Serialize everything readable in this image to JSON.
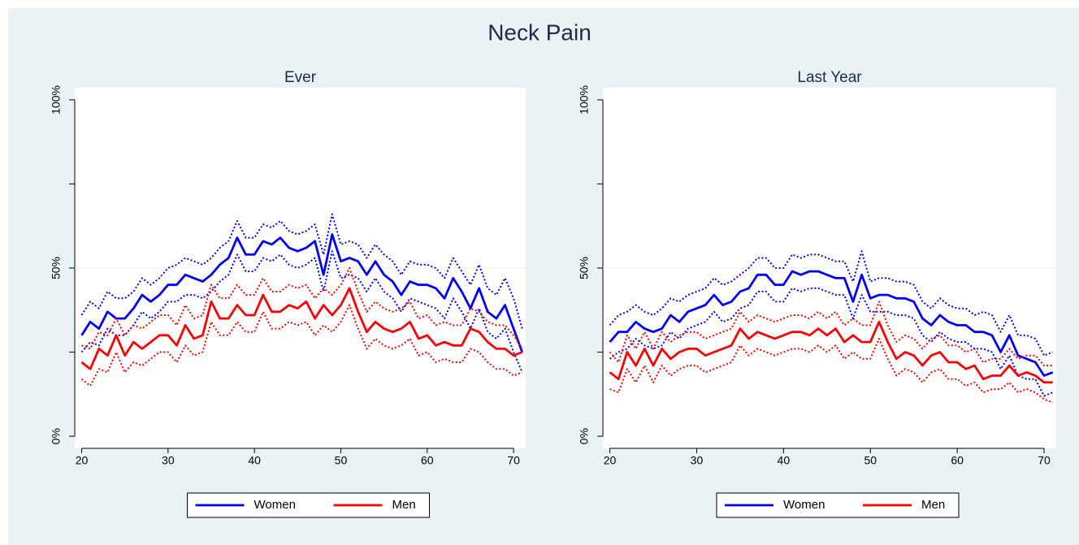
{
  "title": "Neck Pain",
  "chart_data": [
    {
      "type": "line",
      "title": "Ever",
      "x": [
        20,
        21,
        22,
        23,
        24,
        25,
        26,
        27,
        28,
        29,
        30,
        31,
        32,
        33,
        34,
        35,
        36,
        37,
        38,
        39,
        40,
        41,
        42,
        43,
        44,
        45,
        46,
        47,
        48,
        49,
        50,
        51,
        52,
        53,
        54,
        55,
        56,
        57,
        58,
        59,
        60,
        61,
        62,
        63,
        64,
        65,
        66,
        67,
        68,
        69,
        70,
        71
      ],
      "series": [
        {
          "name": "Women",
          "color": "#0000ff",
          "values": [
            30,
            34,
            32,
            37,
            35,
            35,
            38,
            42,
            40,
            42,
            45,
            45,
            48,
            47,
            46,
            48,
            51,
            53,
            59,
            54,
            54,
            58,
            57,
            59,
            56,
            55,
            56,
            58,
            48,
            60,
            52,
            53,
            52,
            48,
            52,
            48,
            46,
            42,
            46,
            45,
            45,
            44,
            41,
            47,
            43,
            38,
            44,
            37,
            35,
            39,
            32,
            25
          ],
          "upper": [
            36,
            40,
            38,
            43,
            41,
            41,
            43,
            47,
            45,
            47,
            50,
            51,
            53,
            52,
            51,
            53,
            56,
            58,
            64,
            59,
            59,
            63,
            62,
            64,
            61,
            60,
            61,
            63,
            54,
            66,
            57,
            58,
            57,
            53,
            57,
            54,
            52,
            48,
            52,
            51,
            51,
            50,
            47,
            53,
            49,
            45,
            51,
            44,
            42,
            47,
            41,
            32
          ],
          "lower": [
            25,
            28,
            27,
            32,
            30,
            30,
            33,
            37,
            35,
            37,
            40,
            40,
            42,
            42,
            41,
            43,
            46,
            48,
            54,
            49,
            49,
            53,
            52,
            54,
            51,
            50,
            51,
            53,
            43,
            55,
            47,
            48,
            47,
            43,
            47,
            43,
            41,
            37,
            41,
            40,
            39,
            38,
            35,
            41,
            37,
            32,
            38,
            31,
            29,
            32,
            25,
            19
          ]
        },
        {
          "name": "Men",
          "color": "#ff0000",
          "values": [
            22,
            20,
            26,
            24,
            30,
            24,
            28,
            26,
            28,
            30,
            30,
            27,
            33,
            29,
            30,
            40,
            35,
            35,
            39,
            36,
            36,
            42,
            37,
            37,
            39,
            38,
            40,
            35,
            39,
            36,
            39,
            44,
            37,
            31,
            34,
            32,
            31,
            32,
            34,
            29,
            30,
            27,
            28,
            27,
            27,
            32,
            31,
            28,
            26,
            26,
            24,
            25
          ],
          "upper": [
            27,
            26,
            31,
            30,
            35,
            30,
            33,
            32,
            34,
            36,
            36,
            33,
            39,
            35,
            36,
            45,
            41,
            41,
            45,
            42,
            42,
            47,
            43,
            43,
            45,
            44,
            45,
            41,
            44,
            42,
            45,
            50,
            43,
            37,
            40,
            38,
            37,
            38,
            40,
            35,
            36,
            33,
            34,
            33,
            33,
            38,
            37,
            34,
            33,
            33,
            30,
            26
          ],
          "lower": [
            17,
            15,
            20,
            19,
            25,
            19,
            22,
            21,
            23,
            25,
            25,
            22,
            27,
            24,
            25,
            34,
            30,
            30,
            34,
            31,
            31,
            37,
            32,
            32,
            34,
            33,
            34,
            30,
            33,
            31,
            34,
            39,
            32,
            26,
            29,
            27,
            26,
            27,
            29,
            24,
            25,
            22,
            23,
            22,
            22,
            26,
            25,
            22,
            20,
            20,
            18,
            19
          ]
        }
      ],
      "xlim": [
        19.2,
        71.4
      ],
      "ylim": [
        -3.6,
        103.6
      ],
      "xticks": [
        20,
        30,
        40,
        50,
        60,
        70
      ],
      "yticks": [
        {
          "value": 0,
          "label": "0%"
        },
        {
          "value": 50,
          "label": "50%"
        },
        {
          "value": 100,
          "label": "100%"
        }
      ],
      "yminorticks": [
        25,
        75
      ],
      "grid": true,
      "legend": "bottom"
    },
    {
      "type": "line",
      "title": "Last Year",
      "x": [
        20,
        21,
        22,
        23,
        24,
        25,
        26,
        27,
        28,
        29,
        30,
        31,
        32,
        33,
        34,
        35,
        36,
        37,
        38,
        39,
        40,
        41,
        42,
        43,
        44,
        45,
        46,
        47,
        48,
        49,
        50,
        51,
        52,
        53,
        54,
        55,
        56,
        57,
        58,
        59,
        60,
        61,
        62,
        63,
        64,
        65,
        66,
        67,
        68,
        69,
        70,
        71
      ],
      "series": [
        {
          "name": "Women",
          "color": "#0000ff",
          "values": [
            28,
            31,
            31,
            34,
            32,
            31,
            32,
            36,
            34,
            37,
            38,
            39,
            42,
            39,
            40,
            43,
            44,
            48,
            48,
            45,
            45,
            49,
            48,
            49,
            49,
            48,
            47,
            47,
            40,
            48,
            41,
            42,
            42,
            41,
            41,
            40,
            35,
            33,
            36,
            34,
            33,
            33,
            31,
            31,
            30,
            25,
            30,
            24,
            23,
            22,
            18,
            19
          ],
          "upper": [
            33,
            36,
            37,
            39,
            37,
            36,
            38,
            41,
            40,
            42,
            43,
            44,
            47,
            45,
            46,
            48,
            50,
            53,
            53,
            50,
            50,
            54,
            53,
            54,
            54,
            53,
            52,
            52,
            46,
            55,
            46,
            47,
            47,
            46,
            46,
            45,
            40,
            38,
            41,
            39,
            38,
            38,
            36,
            37,
            36,
            31,
            36,
            30,
            30,
            29,
            24,
            25
          ],
          "lower": [
            23,
            25,
            26,
            29,
            27,
            26,
            27,
            31,
            29,
            32,
            33,
            34,
            37,
            34,
            35,
            38,
            39,
            43,
            43,
            40,
            40,
            44,
            43,
            44,
            44,
            43,
            42,
            42,
            35,
            42,
            37,
            37,
            37,
            36,
            36,
            35,
            30,
            28,
            31,
            29,
            28,
            28,
            26,
            26,
            25,
            20,
            24,
            18,
            17,
            17,
            12,
            13
          ]
        },
        {
          "name": "Men",
          "color": "#ff0000",
          "values": [
            19,
            17,
            25,
            21,
            26,
            21,
            26,
            23,
            25,
            26,
            26,
            24,
            25,
            26,
            27,
            32,
            29,
            31,
            30,
            29,
            30,
            31,
            31,
            30,
            32,
            30,
            32,
            28,
            30,
            28,
            28,
            34,
            28,
            23,
            25,
            24,
            21,
            24,
            25,
            22,
            22,
            20,
            21,
            17,
            18,
            18,
            21,
            18,
            19,
            18,
            16,
            16
          ],
          "upper": [
            25,
            22,
            30,
            26,
            31,
            26,
            31,
            28,
            30,
            31,
            31,
            29,
            30,
            31,
            32,
            37,
            34,
            36,
            35,
            34,
            35,
            36,
            36,
            35,
            37,
            35,
            37,
            33,
            35,
            33,
            33,
            40,
            33,
            28,
            30,
            29,
            26,
            29,
            30,
            27,
            27,
            25,
            26,
            22,
            23,
            23,
            26,
            23,
            24,
            24,
            21,
            21
          ],
          "lower": [
            14,
            13,
            20,
            16,
            21,
            16,
            21,
            18,
            20,
            21,
            21,
            19,
            20,
            21,
            22,
            27,
            24,
            26,
            25,
            24,
            25,
            26,
            26,
            25,
            27,
            25,
            27,
            23,
            25,
            23,
            23,
            29,
            23,
            18,
            20,
            19,
            16,
            19,
            20,
            17,
            17,
            15,
            16,
            13,
            14,
            14,
            16,
            13,
            14,
            13,
            11,
            10
          ]
        }
      ],
      "xlim": [
        19.2,
        71.4
      ],
      "ylim": [
        -3.6,
        103.6
      ],
      "xticks": [
        20,
        30,
        40,
        50,
        60,
        70
      ],
      "yticks": [
        {
          "value": 0,
          "label": "0%"
        },
        {
          "value": 50,
          "label": "50%"
        },
        {
          "value": 100,
          "label": "100%"
        }
      ],
      "yminorticks": [
        25,
        75
      ],
      "grid": true,
      "legend": "bottom"
    }
  ]
}
